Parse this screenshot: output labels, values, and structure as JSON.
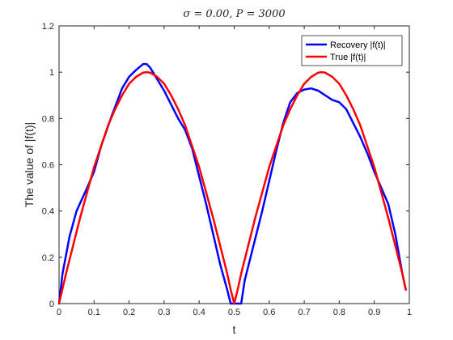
{
  "chart_data": {
    "type": "line",
    "title": "σ = 0.00,    P = 3000",
    "xlabel": "t",
    "ylabel": "The value of |f(t)|",
    "xlim": [
      0,
      1
    ],
    "ylim": [
      0,
      1.2
    ],
    "xticks": [
      "0",
      "0.1",
      "0.2",
      "0.3",
      "0.4",
      "0.5",
      "0.6",
      "0.7",
      "0.8",
      "0.9",
      "1"
    ],
    "yticks": [
      "0",
      "0.2",
      "0.4",
      "0.6",
      "0.8",
      "1",
      "1.2"
    ],
    "grid": false,
    "legend_position": "top-right",
    "series": [
      {
        "name": "Recovery |f(t)|",
        "color": "#0000ff",
        "x": [
          0.0,
          0.01,
          0.03,
          0.05,
          0.08,
          0.1,
          0.12,
          0.15,
          0.18,
          0.2,
          0.22,
          0.24,
          0.25,
          0.26,
          0.28,
          0.3,
          0.32,
          0.34,
          0.36,
          0.38,
          0.4,
          0.42,
          0.44,
          0.46,
          0.48,
          0.49,
          0.5,
          0.51,
          0.52,
          0.53,
          0.55,
          0.58,
          0.6,
          0.62,
          0.64,
          0.66,
          0.68,
          0.7,
          0.72,
          0.74,
          0.76,
          0.78,
          0.8,
          0.82,
          0.84,
          0.86,
          0.88,
          0.9,
          0.92,
          0.94,
          0.96,
          0.98,
          0.99
        ],
        "y": [
          0.0,
          0.13,
          0.29,
          0.4,
          0.5,
          0.57,
          0.68,
          0.81,
          0.93,
          0.98,
          1.01,
          1.035,
          1.035,
          1.02,
          0.97,
          0.92,
          0.86,
          0.8,
          0.75,
          0.67,
          0.55,
          0.43,
          0.3,
          0.17,
          0.06,
          0.0,
          0.0,
          0.0,
          0.0,
          0.1,
          0.22,
          0.4,
          0.53,
          0.66,
          0.78,
          0.87,
          0.91,
          0.925,
          0.93,
          0.92,
          0.9,
          0.88,
          0.87,
          0.84,
          0.78,
          0.72,
          0.65,
          0.57,
          0.5,
          0.43,
          0.3,
          0.13,
          0.06
        ]
      },
      {
        "name": "True |f(t)|",
        "color": "#ff0000",
        "x": [
          0.0,
          0.02,
          0.04,
          0.06,
          0.08,
          0.1,
          0.12,
          0.14,
          0.16,
          0.18,
          0.2,
          0.22,
          0.24,
          0.25,
          0.26,
          0.28,
          0.3,
          0.32,
          0.34,
          0.36,
          0.38,
          0.4,
          0.42,
          0.44,
          0.46,
          0.48,
          0.49,
          0.5,
          0.51,
          0.52,
          0.54,
          0.56,
          0.58,
          0.6,
          0.62,
          0.64,
          0.66,
          0.68,
          0.7,
          0.72,
          0.74,
          0.75,
          0.76,
          0.78,
          0.8,
          0.82,
          0.84,
          0.86,
          0.88,
          0.9,
          0.92,
          0.94,
          0.96,
          0.98,
          0.99
        ],
        "y": [
          0.0,
          0.13,
          0.25,
          0.37,
          0.48,
          0.59,
          0.68,
          0.77,
          0.84,
          0.9,
          0.95,
          0.98,
          0.998,
          1.0,
          0.998,
          0.98,
          0.95,
          0.9,
          0.84,
          0.77,
          0.68,
          0.59,
          0.48,
          0.37,
          0.25,
          0.13,
          0.06,
          0.0,
          0.06,
          0.13,
          0.25,
          0.37,
          0.48,
          0.59,
          0.68,
          0.77,
          0.84,
          0.9,
          0.95,
          0.98,
          0.998,
          1.0,
          0.998,
          0.98,
          0.95,
          0.9,
          0.84,
          0.77,
          0.68,
          0.59,
          0.48,
          0.37,
          0.25,
          0.13,
          0.06
        ]
      }
    ]
  }
}
